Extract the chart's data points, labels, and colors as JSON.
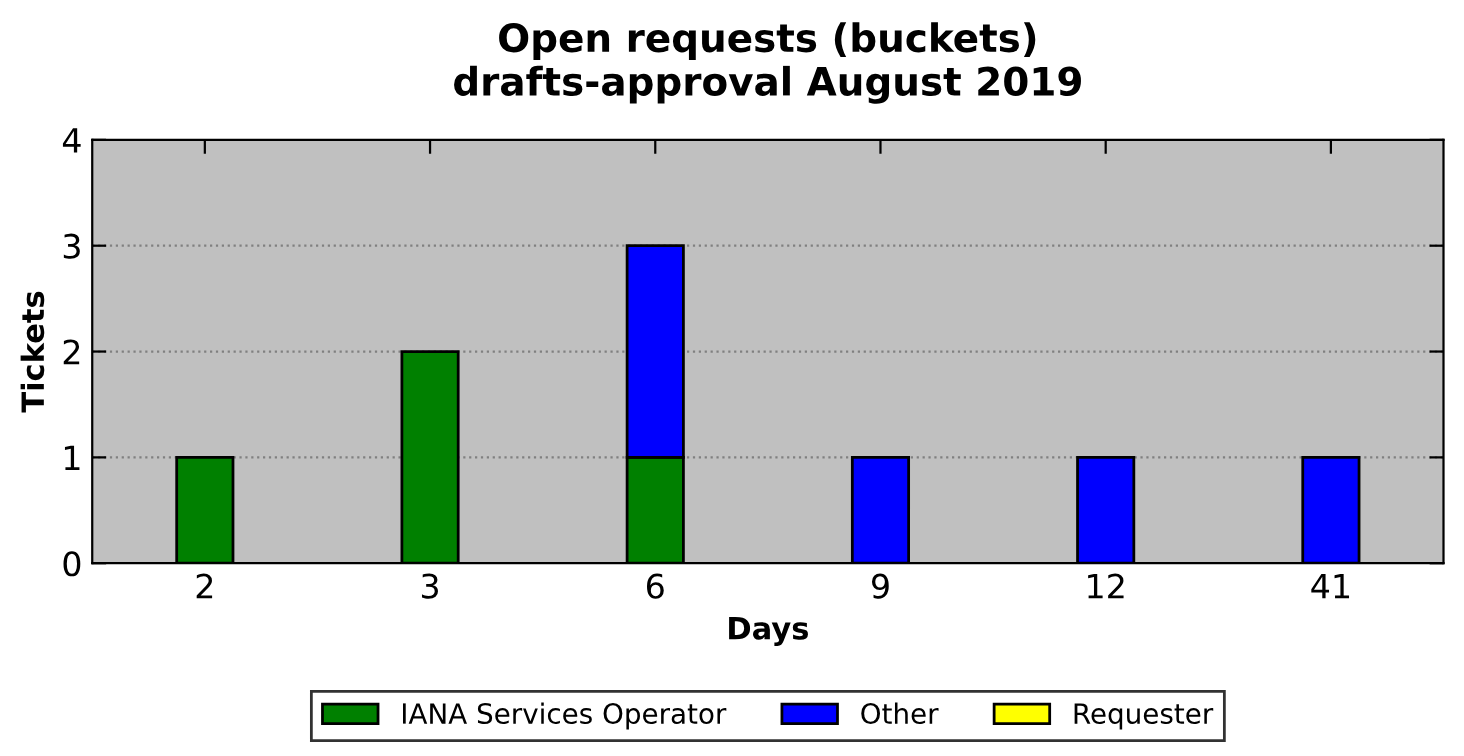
{
  "chart_data": {
    "type": "bar",
    "title": "Open requests (buckets)",
    "subtitle": "drafts-approval August 2019",
    "xlabel": "Days",
    "ylabel": "Tickets",
    "categories": [
      "2",
      "3",
      "6",
      "9",
      "12",
      "41"
    ],
    "stacked": true,
    "series": [
      {
        "name": "IANA Services Operator",
        "color": "#008000",
        "values": [
          1,
          2,
          1,
          0,
          0,
          0
        ]
      },
      {
        "name": "Other",
        "color": "#0000ff",
        "values": [
          0,
          0,
          2,
          1,
          1,
          1
        ]
      },
      {
        "name": "Requester",
        "color": "#ffff00",
        "values": [
          0,
          0,
          0,
          0,
          0,
          0
        ]
      }
    ],
    "ylim": [
      0,
      4
    ],
    "yticks": [
      0,
      1,
      2,
      3,
      4
    ],
    "grid": "y",
    "legend": "bottom"
  }
}
